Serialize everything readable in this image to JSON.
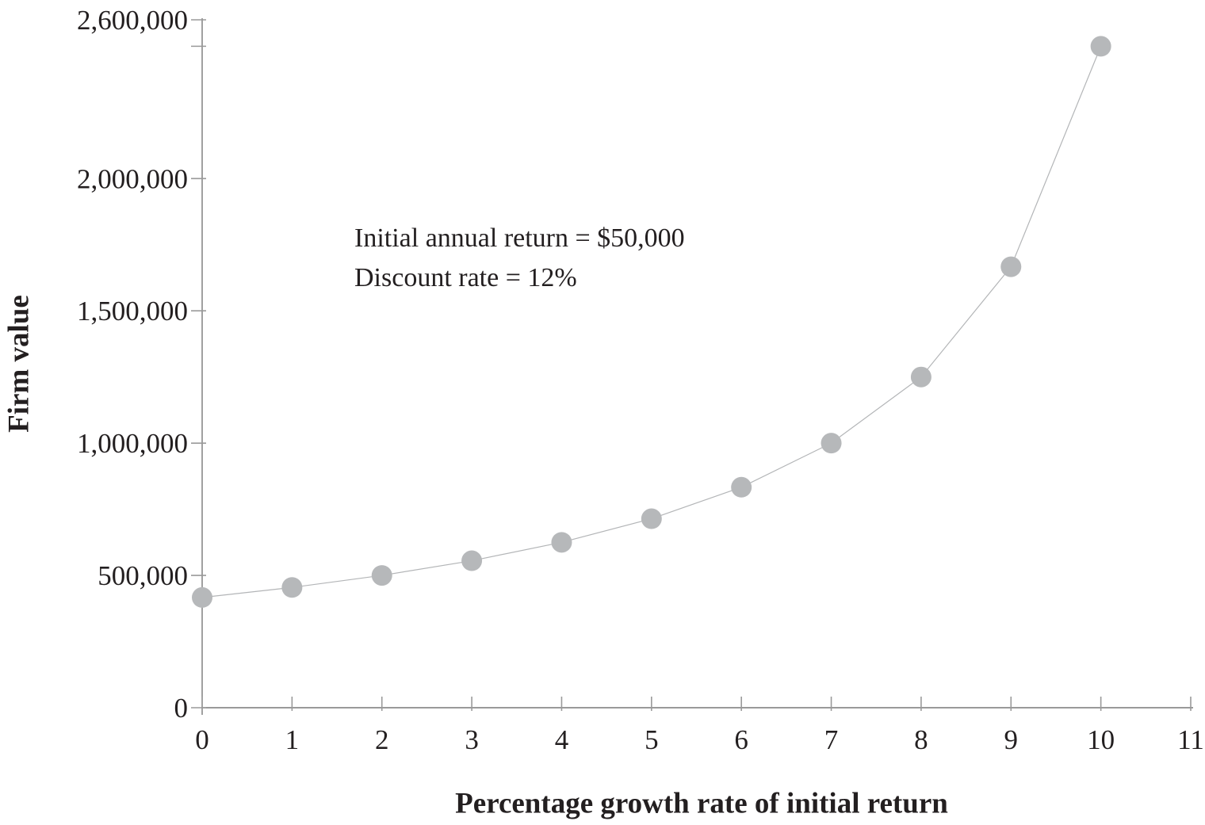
{
  "chart_data": {
    "type": "line",
    "xlabel": "Percentage growth rate of initial return",
    "ylabel": "Firm value",
    "x": [
      0,
      1,
      2,
      3,
      4,
      5,
      6,
      7,
      8,
      9,
      10
    ],
    "y": [
      416667,
      454545,
      500000,
      555556,
      625000,
      714286,
      833333,
      1000000,
      1250000,
      1666667,
      2500000
    ],
    "xlim": [
      0,
      11
    ],
    "ylim": [
      0,
      2600000
    ],
    "x_tick_labels": [
      "0",
      "1",
      "2",
      "3",
      "4",
      "5",
      "6",
      "7",
      "8",
      "9",
      "10",
      "11"
    ],
    "x_tick_values": [
      0,
      1,
      2,
      3,
      4,
      5,
      6,
      7,
      8,
      9,
      10,
      11
    ],
    "y_ticks_labeled": [
      {
        "value": 0,
        "label": "0"
      },
      {
        "value": 500000,
        "label": "500,000"
      },
      {
        "value": 1000000,
        "label": "1,000,000"
      },
      {
        "value": 1500000,
        "label": "1,500,000"
      },
      {
        "value": 2000000,
        "label": "2,000,000"
      },
      {
        "value": 2600000,
        "label": "2,600,000"
      }
    ],
    "y_ticks_unlabeled": [
      2500000
    ],
    "grid": false,
    "legend_position": "none",
    "annotation_lines": {
      "line1": "Initial annual return = $50,000",
      "line2": "Discount rate = 12%"
    },
    "colors": {
      "marker": "#b6b8ba",
      "series_line": "#b3b5b7",
      "axis_line": "#787878",
      "tick_mark": "#9a9a9a",
      "text": "#231f20"
    }
  }
}
